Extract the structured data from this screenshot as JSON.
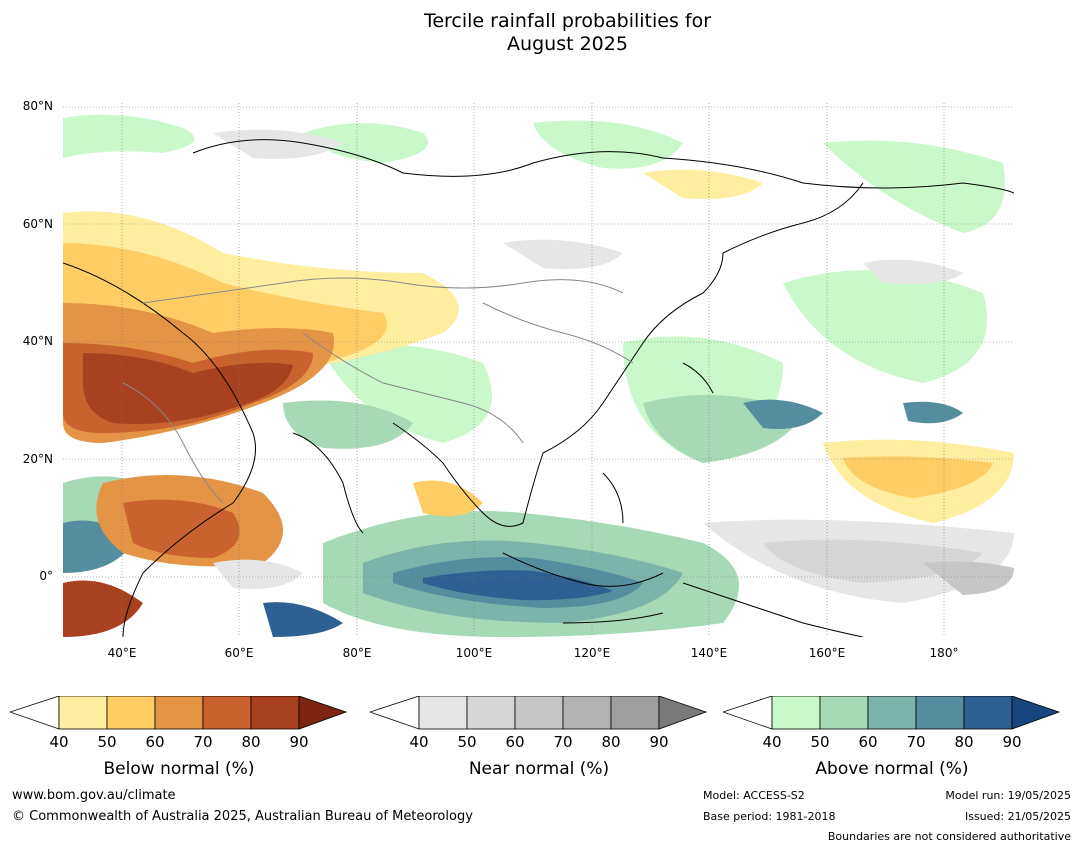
{
  "title_line1": "Tercile rainfall probabilities for",
  "title_line2": "August 2025",
  "map": {
    "lat_labels": [
      "80°N",
      "60°N",
      "40°N",
      "20°N",
      "0°"
    ],
    "lon_labels": [
      "40°E",
      "60°E",
      "80°E",
      "100°E",
      "120°E",
      "140°E",
      "160°E",
      "180°"
    ],
    "lon_range": [
      30,
      192
    ],
    "lat_range": [
      -10,
      81
    ]
  },
  "colorbars": [
    {
      "label": "Below normal (%)",
      "ticks": [
        "40",
        "50",
        "60",
        "70",
        "80",
        "90"
      ],
      "colors": [
        "#ffffff",
        "#ffee9f",
        "#fece65",
        "#e39445",
        "#c9622f",
        "#a8411f",
        "#7e2511"
      ]
    },
    {
      "label": "Near normal (%)",
      "ticks": [
        "40",
        "50",
        "60",
        "70",
        "80",
        "90"
      ],
      "colors": [
        "#ffffff",
        "#e6e6e6",
        "#d6d6d6",
        "#c6c6c6",
        "#b2b2b2",
        "#9f9f9f",
        "#7a7a7a"
      ]
    },
    {
      "label": "Above normal (%)",
      "ticks": [
        "40",
        "50",
        "60",
        "70",
        "80",
        "90"
      ],
      "colors": [
        "#ffffff",
        "#c9f9cb",
        "#a6d9b5",
        "#7bb4aa",
        "#548e9e",
        "#2f6093",
        "#16467d"
      ]
    }
  ],
  "footer": {
    "website": "www.bom.gov.au/climate",
    "copyright": "© Commonwealth of Australia 2025, Australian Bureau of Meteorology",
    "model": "Model: ACCESS-S2",
    "base_period": "Base period: 1981-2018",
    "model_run": "Model run: 19/05/2025",
    "issued": "Issued: 21/05/2025",
    "boundaries": "Boundaries are not considered authoritative"
  }
}
